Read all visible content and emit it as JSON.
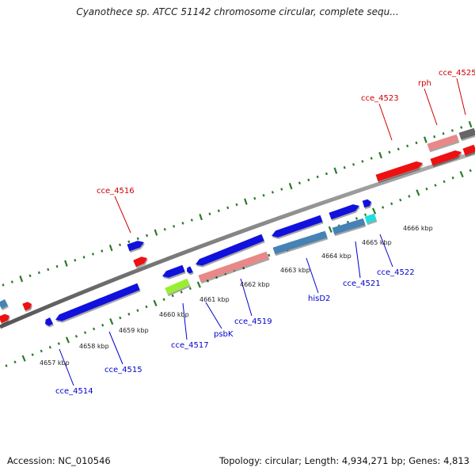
{
  "title": "Cyanothece sp. ATCC 51142 chromosome circular, complete sequ...",
  "footer": {
    "accession": "Accession: NC_010546",
    "summary": "Topology: circular; Length: 4,934,271 bp; Genes: 4,813"
  },
  "colors": {
    "backbone": "#888888",
    "ticks": "#2a7a2a",
    "label_forward": "#cc0000",
    "label_reverse": "#0000cc"
  },
  "scale_labels": [
    "4657 kbp",
    "4658 kbp",
    "4659 kbp",
    "4660 kbp",
    "4661 kbp",
    "4662 kbp",
    "4663 kbp",
    "4664 kbp",
    "4665 kbp",
    "4666 kbp"
  ],
  "gene_labels": {
    "forward": [
      "cce_4516",
      "cce_4523",
      "rph",
      "cce_4525"
    ],
    "reverse": [
      "cce_4514",
      "cce_4515",
      "cce_4517",
      "psbK",
      "cce_4519",
      "hisD2",
      "cce_4521",
      "cce_4522"
    ]
  },
  "feature_colors": {
    "red": "#ee1111",
    "pink": "#e88888",
    "blue": "#1111dd",
    "steel": "#4682b4",
    "green": "#99ee33",
    "cyan": "#22dddd",
    "gray": "#666666"
  }
}
